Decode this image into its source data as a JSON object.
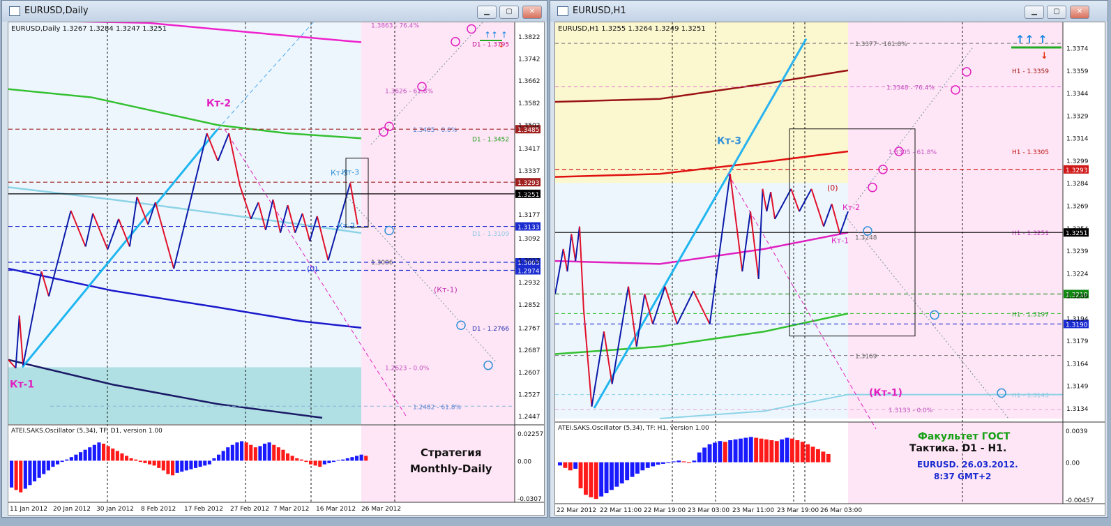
{
  "left_window": {
    "title": "EURUSD,Daily",
    "header": "EURUSD,Daily  1.3267 1.3284 1.3247 1.3251",
    "osc_title": "ATEI.SAKS.Oscillator (5,34), TF: D1, version 1.00",
    "strategy_line1": "Стратегия",
    "strategy_line2": "Monthly-Daily"
  },
  "right_window": {
    "title": "EURUSD,H1",
    "header": "EURUSD,H1  1.3255 1.3264 1.3249 1.3251",
    "osc_title": "ATEI.SAKS.Oscillator (5,34), TF: H1, version 1.00",
    "caption_line1": "Факультет ГОСТ",
    "caption_line2": "Тактика. D1 - H1.",
    "caption_line3": "EURUSD.  26.03.2012.",
    "caption_line4": "8:37  GMT+2"
  },
  "colors": {
    "up_bar": "#1a1aff",
    "down_bar": "#ff1a1a",
    "zigzag_up": "#0a1aa8",
    "zigzag_down": "#e0102a",
    "trend": "#1fb6f0",
    "future_zone": "#ffe6f6",
    "history_zone": "#eef6fd",
    "h1_top_zone": "#fbf7cf",
    "magenta": "#e020c0",
    "green": "#2fbf2f"
  },
  "chart_data": [
    {
      "type": "line",
      "title": "EURUSD,Daily",
      "ylim": [
        1.2417,
        1.3872
      ],
      "y_ticks": [
        "1.3822",
        "1.3742",
        "1.3662",
        "1.3582",
        "1.3502",
        "1.3417",
        "1.3337",
        "1.3257",
        "1.3177",
        "1.3092",
        "1.3012",
        "1.2932",
        "1.2852",
        "1.2767",
        "1.2687",
        "1.2607",
        "1.2527",
        "1.2447"
      ],
      "x_labels": [
        "11 Jan 2012",
        "20 Jan 2012",
        "30 Jan 2012",
        "8 Feb 2012",
        "17 Feb 2012",
        "27 Feb 2012",
        "7 Mar 2012",
        "16 Mar 2012",
        "26 Mar 2012"
      ],
      "price_tags": [
        {
          "label": "1.3485",
          "value": 1.3485,
          "color": "#a02020"
        },
        {
          "label": "1.3293",
          "value": 1.3293,
          "color": "#a02020"
        },
        {
          "label": "1.3251",
          "value": 1.3251,
          "color": "#000000"
        },
        {
          "label": "1.3133",
          "value": 1.3133,
          "color": "#1a2bd0"
        },
        {
          "label": "1.3003",
          "value": 1.3003,
          "color": "#1a2bd0"
        },
        {
          "label": "1.2974",
          "value": 1.2974,
          "color": "#1a2bd0"
        }
      ],
      "levels": [
        {
          "label": "1.3863 - 76.4%",
          "value": 1.3863
        },
        {
          "label": "D1 - 1.3795",
          "value": 1.3795
        },
        {
          "label": "1.3626 - 61.8%",
          "value": 1.3626
        },
        {
          "label": "1.3485 - 0.0%",
          "value": 1.3485
        },
        {
          "label": "D1 - 1.3452",
          "value": 1.3452
        },
        {
          "label": "D1 - 1.3109",
          "value": 1.3109
        },
        {
          "label": "1.3006",
          "value": 1.3006
        },
        {
          "label": "D1 - 1.2766",
          "value": 1.2766
        },
        {
          "label": "1.2623 - 0.0%",
          "value": 1.2623
        },
        {
          "label": "1.2482 - 61.8%",
          "value": 1.2482
        }
      ],
      "annotations": [
        "Кт-2",
        "Кт-1",
        "Кт-3",
        "Кт-3",
        "Кт-2",
        "(0)",
        "(Кт-1)"
      ],
      "zigzag": [
        [
          0,
          1.265
        ],
        [
          2,
          1.262
        ],
        [
          3,
          1.281
        ],
        [
          4,
          1.263
        ],
        [
          9,
          1.297
        ],
        [
          11,
          1.288
        ],
        [
          17,
          1.319
        ],
        [
          21,
          1.306
        ],
        [
          23,
          1.318
        ],
        [
          27,
          1.305
        ],
        [
          30,
          1.316
        ],
        [
          33,
          1.306
        ],
        [
          35,
          1.324
        ],
        [
          38,
          1.314
        ],
        [
          40,
          1.322
        ],
        [
          45,
          1.298
        ],
        [
          54,
          1.347
        ],
        [
          57,
          1.337
        ],
        [
          60,
          1.347
        ],
        [
          63,
          1.328
        ],
        [
          66,
          1.316
        ],
        [
          68,
          1.322
        ],
        [
          70,
          1.312
        ],
        [
          72,
          1.323
        ],
        [
          74,
          1.311
        ],
        [
          76,
          1.321
        ],
        [
          78,
          1.311
        ],
        [
          80,
          1.318
        ],
        [
          82,
          1.308
        ],
        [
          84,
          1.317
        ],
        [
          87,
          1.301
        ],
        [
          93,
          1.329
        ],
        [
          95,
          1.314
        ]
      ],
      "osc_ylim": [
        -0.0307,
        0.02257
      ],
      "osc_ticks": [
        "0.02257",
        "0.00",
        "-0.0307"
      ],
      "oscillator": [
        -0.022,
        -0.024,
        -0.026,
        -0.023,
        -0.02,
        -0.017,
        -0.014,
        -0.011,
        -0.008,
        -0.005,
        -0.003,
        -0.001,
        0.001,
        0.003,
        0.005,
        0.007,
        0.009,
        0.011,
        0.013,
        0.015,
        0.014,
        0.012,
        0.01,
        0.008,
        0.006,
        0.004,
        0.002,
        0.001,
        -0.001,
        -0.002,
        -0.003,
        -0.004,
        -0.006,
        -0.008,
        -0.011,
        -0.012,
        -0.01,
        -0.009,
        -0.008,
        -0.007,
        -0.006,
        -0.005,
        -0.004,
        -0.003,
        0.002,
        0.005,
        0.008,
        0.011,
        0.013,
        0.015,
        0.016,
        0.015,
        0.013,
        0.011,
        0.012,
        0.014,
        0.015,
        0.013,
        0.011,
        0.009,
        0.006,
        0.004,
        0.002,
        0.001,
        -0.001,
        -0.003,
        -0.004,
        -0.005,
        -0.003,
        -0.002,
        -0.001,
        0.0005,
        0.001,
        0.002,
        0.003,
        0.004,
        0.005,
        0.004
      ]
    },
    {
      "type": "line",
      "title": "EURUSD,H1",
      "ylim": [
        1.3127,
        1.3391
      ],
      "y_ticks": [
        "1.3374",
        "1.3359",
        "1.3344",
        "1.3329",
        "1.3314",
        "1.3299",
        "1.3284",
        "1.3269",
        "1.3254",
        "1.3239",
        "1.3224",
        "1.3209",
        "1.3194",
        "1.3179",
        "1.3164",
        "1.3149",
        "1.3134"
      ],
      "x_labels": [
        "22 Mar 2012",
        "22 Mar 11:00",
        "22 Mar 19:00",
        "23 Mar 03:00",
        "23 Mar 11:00",
        "23 Mar 19:00",
        "26 Mar 03:00"
      ],
      "price_tags": [
        {
          "label": "1.3293",
          "value": 1.3293,
          "color": "#d01818"
        },
        {
          "label": "1.3251",
          "value": 1.3251,
          "color": "#000000"
        },
        {
          "label": "1.3210",
          "value": 1.321,
          "color": "#118811"
        },
        {
          "label": "1.3190",
          "value": 1.319,
          "color": "#1a2bd0"
        }
      ],
      "levels": [
        {
          "label": "1.3377 - 161.8%",
          "value": 1.3377
        },
        {
          "label": "H1 - 1.3359",
          "value": 1.3359
        },
        {
          "label": "1.3348 - 76.4%",
          "value": 1.3348
        },
        {
          "label": "1.3305 - 61.8%",
          "value": 1.3305
        },
        {
          "label": "H1 - 1.3305",
          "value": 1.3305
        },
        {
          "label": "H1 - 1.3251",
          "value": 1.3251
        },
        {
          "label": "1.3248",
          "value": 1.3248
        },
        {
          "label": "H1 - 1.3197",
          "value": 1.3197
        },
        {
          "label": "1.3169",
          "value": 1.3169
        },
        {
          "label": "H1 - 1.3143",
          "value": 1.3143
        },
        {
          "label": "1.3133 - 0.0%",
          "value": 1.3133
        }
      ],
      "annotations": [
        "Кт-3",
        "(0)",
        "Кт-2",
        "Кт-1",
        "(Кт-1)"
      ],
      "zigzag": [
        [
          0,
          1.321
        ],
        [
          2,
          1.324
        ],
        [
          3,
          1.3225
        ],
        [
          4,
          1.325
        ],
        [
          5,
          1.3232
        ],
        [
          6,
          1.3255
        ],
        [
          7,
          1.32
        ],
        [
          9,
          1.3135
        ],
        [
          12,
          1.3185
        ],
        [
          14,
          1.315
        ],
        [
          18,
          1.3215
        ],
        [
          20,
          1.3175
        ],
        [
          22,
          1.321
        ],
        [
          24,
          1.319
        ],
        [
          27,
          1.3215
        ],
        [
          30,
          1.319
        ],
        [
          34,
          1.3212
        ],
        [
          38,
          1.319
        ],
        [
          43,
          1.329
        ],
        [
          46,
          1.3225
        ],
        [
          48,
          1.3265
        ],
        [
          50,
          1.322
        ],
        [
          51,
          1.328
        ],
        [
          52,
          1.3265
        ],
        [
          53,
          1.3278
        ],
        [
          54,
          1.326
        ],
        [
          58,
          1.328
        ],
        [
          60,
          1.3265
        ],
        [
          63,
          1.328
        ],
        [
          66,
          1.3255
        ],
        [
          68,
          1.327
        ],
        [
          70,
          1.325
        ],
        [
          72,
          1.3265
        ]
      ],
      "osc_ylim": [
        -0.00457,
        0.0039
      ],
      "osc_ticks": [
        "0.0039",
        "0.00",
        "-0.00457"
      ],
      "oscillator": [
        -0.0004,
        -0.0007,
        -0.001,
        -0.0008,
        -0.0032,
        -0.004,
        -0.0043,
        -0.0045,
        -0.0042,
        -0.0038,
        -0.0034,
        -0.003,
        -0.0026,
        -0.0022,
        -0.0018,
        -0.0014,
        -0.001,
        -0.0007,
        -0.0005,
        -0.0003,
        -0.0002,
        -0.0001,
        0.0001,
        0.0002,
        0.0001,
        -0.0001,
        0.0002,
        0.0012,
        0.0018,
        0.0022,
        0.0024,
        0.0026,
        0.0025,
        0.0027,
        0.0028,
        0.0029,
        0.003,
        0.0031,
        0.003,
        0.0029,
        0.0028,
        0.0027,
        0.0026,
        0.0028,
        0.003,
        0.0029,
        0.0027,
        0.0025,
        0.0022,
        0.0019,
        0.0016,
        0.0013,
        0.001
      ]
    }
  ]
}
